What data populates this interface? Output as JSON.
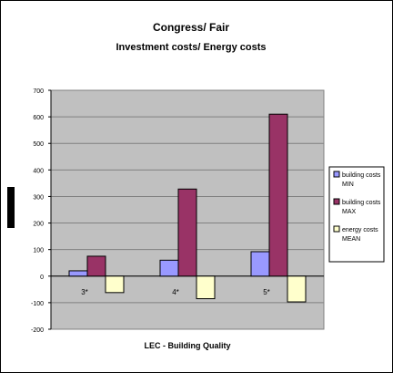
{
  "chart_data": {
    "type": "bar",
    "title": "Congress/ Fair",
    "subtitle": "Investment costs/ Energy costs",
    "xlabel": "LEC - Building Quality",
    "ylabel": "",
    "categories": [
      "3*",
      "4*",
      "5*"
    ],
    "ylim": [
      -200,
      700
    ],
    "yticks": [
      -200,
      -100,
      0,
      100,
      200,
      300,
      400,
      500,
      600,
      700
    ],
    "grid": true,
    "legend_position": "right",
    "series": [
      {
        "name": "building costs MIN",
        "color": "#9999ff",
        "values": [
          20,
          60,
          92
        ]
      },
      {
        "name": "building costs MAX",
        "color": "#993366",
        "values": [
          75,
          328,
          610
        ]
      },
      {
        "name": "energy costs MEAN",
        "color": "#ffffcc",
        "values": [
          -62,
          -85,
          -97
        ]
      }
    ]
  },
  "colors": {
    "plot_background": "#c0c0c0",
    "ylabel_marker": "#000000"
  }
}
